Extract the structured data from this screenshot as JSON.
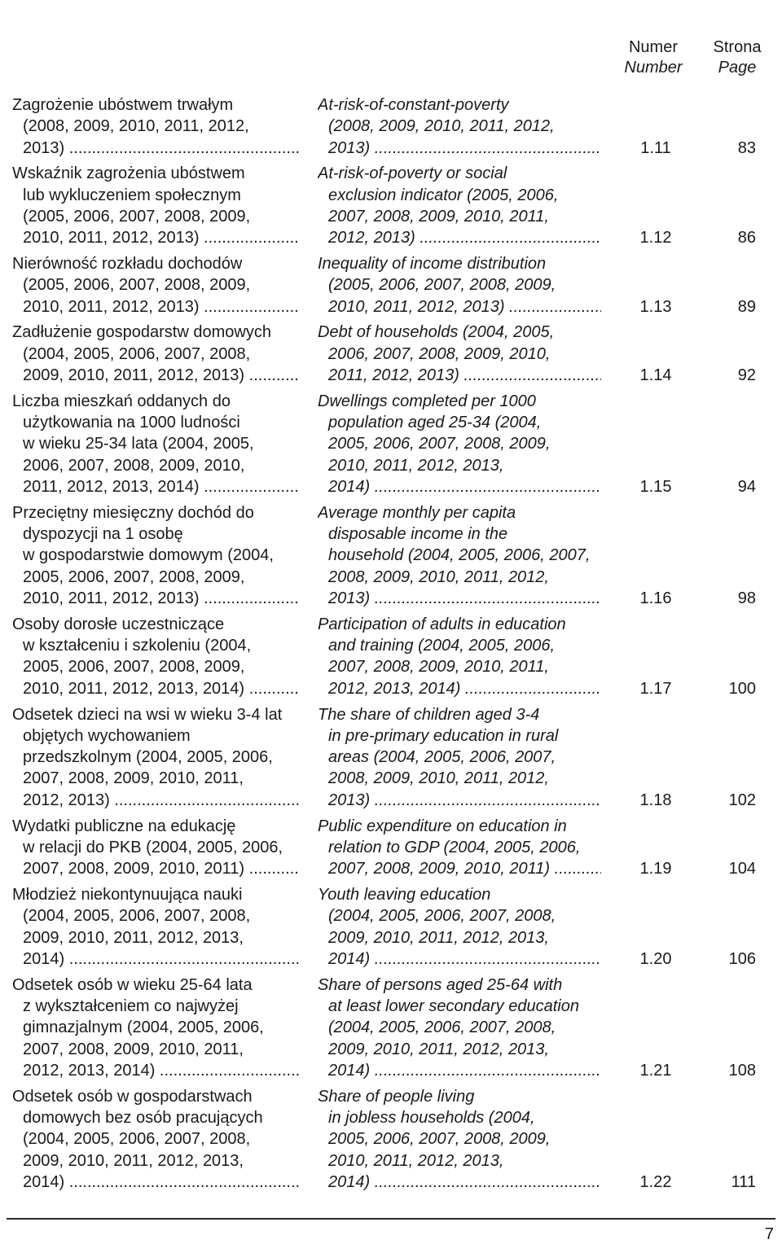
{
  "header": {
    "number_pl": "Numer",
    "number_en": "Number",
    "page_pl": "Strona",
    "page_en": "Page"
  },
  "entries": [
    {
      "pl": [
        "Zagrożenie ubóstwem trwałym",
        "(2008, 2009, 2010, 2011, 2012,",
        "2013)"
      ],
      "en": [
        "At-risk-of-constant-poverty",
        "(2008, 2009, 2010, 2011, 2012,",
        "2013)"
      ],
      "number": "1.11",
      "page": "83"
    },
    {
      "pl": [
        "Wskaźnik zagrożenia ubóstwem",
        "lub wykluczeniem społecznym",
        "(2005, 2006, 2007, 2008, 2009,",
        "2010, 2011, 2012, 2013)"
      ],
      "en": [
        "At-risk-of-poverty or social",
        "exclusion indicator (2005, 2006,",
        "2007, 2008, 2009, 2010, 2011,",
        "2012, 2013)"
      ],
      "number": "1.12",
      "page": "86"
    },
    {
      "pl": [
        "Nierówność rozkładu dochodów",
        "(2005, 2006, 2007, 2008, 2009,",
        "2010, 2011, 2012, 2013)"
      ],
      "en": [
        "Inequality of income distribution",
        "(2005, 2006, 2007, 2008, 2009,",
        "2010, 2011, 2012, 2013)"
      ],
      "number": "1.13",
      "page": "89"
    },
    {
      "pl": [
        "Zadłużenie gospodarstw domowych",
        "(2004, 2005, 2006, 2007, 2008,",
        "2009, 2010, 2011, 2012, 2013)"
      ],
      "en": [
        "Debt of households (2004, 2005,",
        "2006, 2007, 2008, 2009, 2010,",
        "2011, 2012, 2013)"
      ],
      "number": "1.14",
      "page": "92"
    },
    {
      "pl": [
        "Liczba mieszkań oddanych do",
        "użytkowania na 1000 ludności",
        "w wieku 25-34 lata (2004, 2005,",
        "2006, 2007, 2008, 2009, 2010,",
        "2011, 2012, 2013, 2014)"
      ],
      "en": [
        "Dwellings completed per 1000",
        "population aged 25-34 (2004,",
        "2005, 2006, 2007, 2008, 2009,",
        "2010, 2011, 2012, 2013,",
        "2014)"
      ],
      "number": "1.15",
      "page": "94"
    },
    {
      "pl": [
        "Przeciętny miesięczny dochód do",
        "dyspozycji na 1 osobę",
        "w gospodarstwie domowym (2004,",
        "2005, 2006, 2007, 2008, 2009,",
        "2010, 2011, 2012, 2013)"
      ],
      "en": [
        "Average monthly per capita",
        "disposable income in the",
        "household (2004, 2005, 2006, 2007,",
        "2008, 2009, 2010, 2011, 2012,",
        "2013)"
      ],
      "number": "1.16",
      "page": "98"
    },
    {
      "pl": [
        "Osoby dorosłe uczestniczące",
        "w kształceniu i szkoleniu (2004,",
        "2005, 2006, 2007, 2008, 2009,",
        "2010, 2011, 2012, 2013, 2014)"
      ],
      "en": [
        "Participation of adults in education",
        "and training (2004, 2005, 2006,",
        "2007, 2008, 2009, 2010, 2011,",
        "2012, 2013, 2014)"
      ],
      "number": "1.17",
      "page": "100"
    },
    {
      "pl": [
        "Odsetek dzieci na wsi w wieku 3-4 lat",
        "objętych wychowaniem",
        "przedszkolnym (2004, 2005, 2006,",
        "2007, 2008, 2009, 2010, 2011,",
        "2012, 2013)"
      ],
      "en": [
        "The share of children aged 3-4",
        "in pre-primary education in rural",
        "areas (2004, 2005, 2006, 2007,",
        "2008, 2009, 2010, 2011, 2012,",
        "2013)"
      ],
      "number": "1.18",
      "page": "102"
    },
    {
      "pl": [
        "Wydatki publiczne na edukację",
        "w relacji do PKB (2004, 2005, 2006,",
        "2007, 2008, 2009, 2010, 2011)"
      ],
      "en": [
        "Public expenditure on education in",
        "relation to GDP (2004, 2005, 2006,",
        "2007, 2008, 2009, 2010, 2011)"
      ],
      "number": "1.19",
      "page": "104"
    },
    {
      "pl": [
        "Młodzież niekontynuująca nauki",
        "(2004, 2005, 2006, 2007, 2008,",
        "2009, 2010, 2011, 2012, 2013,",
        "2014)"
      ],
      "en": [
        "Youth leaving education",
        "(2004, 2005, 2006, 2007, 2008,",
        "2009, 2010, 2011, 2012, 2013,",
        "2014)"
      ],
      "number": "1.20",
      "page": "106"
    },
    {
      "pl": [
        "Odsetek osób w wieku 25-64 lata",
        "z wykształceniem co najwyżej",
        "gimnazjalnym (2004, 2005, 2006,",
        "2007, 2008, 2009, 2010, 2011,",
        "2012, 2013, 2014)"
      ],
      "en": [
        "Share of persons aged 25-64 with",
        "at least lower secondary education",
        "(2004, 2005, 2006, 2007, 2008,",
        "2009, 2010, 2011, 2012, 2013,",
        "2014)"
      ],
      "number": "1.21",
      "page": "108"
    },
    {
      "pl": [
        "Odsetek osób w gospodarstwach",
        "domowych bez osób pracujących",
        "(2004, 2005, 2006, 2007, 2008,",
        "2009, 2010, 2011, 2012, 2013,",
        "2014)"
      ],
      "en": [
        "Share of people living",
        "in jobless households (2004,",
        "2005, 2006, 2007, 2008, 2009,",
        "2010, 2011, 2012, 2013,",
        "2014)"
      ],
      "number": "1.22",
      "page": "111"
    }
  ],
  "footer": {
    "page_number": "7"
  }
}
